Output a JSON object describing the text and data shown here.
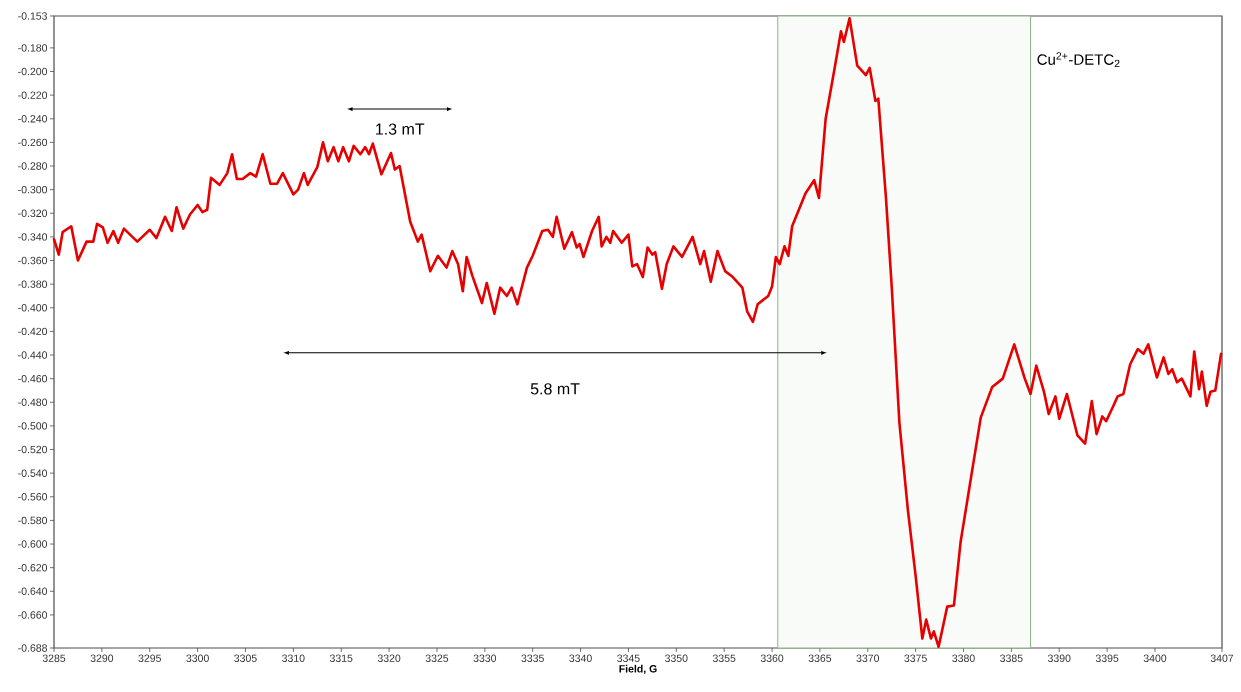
{
  "chart_data": {
    "type": "line",
    "xlabel": "Field, G",
    "color": "#e60000",
    "line_style": "solid",
    "marker": "none",
    "x": [
      3285.0,
      3285.5,
      3285.9,
      3286.8,
      3287.5,
      3288.4,
      3289.1,
      3289.5,
      3290.1,
      3290.6,
      3291.2,
      3291.7,
      3292.3,
      3293.7,
      3295.0,
      3295.7,
      3296.6,
      3297.3,
      3297.8,
      3298.5,
      3299.2,
      3300.0,
      3300.5,
      3301.0,
      3301.4,
      3302.3,
      3303.1,
      3303.6,
      3304.1,
      3304.7,
      3305.5,
      3306.1,
      3306.8,
      3307.6,
      3308.3,
      3308.9,
      3310.0,
      3310.5,
      3311.1,
      3311.5,
      3312.5,
      3313.1,
      3313.6,
      3314.2,
      3314.7,
      3315.2,
      3315.8,
      3316.3,
      3317.0,
      3317.5,
      3317.9,
      3318.3,
      3319.2,
      3320.2,
      3320.6,
      3321.1,
      3322.2,
      3323.0,
      3323.4,
      3324.3,
      3325.1,
      3326.0,
      3326.6,
      3327.2,
      3327.7,
      3328.1,
      3328.7,
      3329.7,
      3330.2,
      3331.0,
      3331.6,
      3332.3,
      3332.8,
      3333.4,
      3334.4,
      3335.0,
      3336.0,
      3336.6,
      3337.1,
      3337.5,
      3338.3,
      3339.1,
      3339.6,
      3339.9,
      3340.3,
      3341.2,
      3341.9,
      3342.2,
      3342.7,
      3343.1,
      3343.4,
      3344.3,
      3345.0,
      3345.4,
      3345.9,
      3346.5,
      3347.0,
      3347.5,
      3347.8,
      3348.5,
      3349.0,
      3349.7,
      3350.6,
      3351.7,
      3352.5,
      3352.9,
      3353.6,
      3354.3,
      3355.1,
      3355.9,
      3356.9,
      3357.4,
      3358.0,
      3358.5,
      3359.6,
      3360.0,
      3360.4,
      3360.8,
      3361.3,
      3361.7,
      3362.1,
      3363.5,
      3364.4,
      3364.9,
      3365.6,
      3366.5,
      3367.2,
      3367.5,
      3368.1,
      3368.9,
      3369.8,
      3370.2,
      3370.8,
      3371.1,
      3371.9,
      3372.5,
      3373.3,
      3374.2,
      3375.0,
      3375.7,
      3376.1,
      3376.6,
      3376.9,
      3377.4,
      3378.3,
      3379.0,
      3379.7,
      3380.6,
      3381.8,
      3383.0,
      3384.1,
      3385.3,
      3386.4,
      3387.0,
      3387.6,
      3388.4,
      3388.9,
      3389.6,
      3390.0,
      3390.8,
      3391.9,
      3392.7,
      3393.4,
      3393.9,
      3394.5,
      3394.9,
      3395.6,
      3396.1,
      3396.7,
      3397.4,
      3398.2,
      3398.8,
      3399.3,
      3400.2,
      3400.9,
      3401.4,
      3401.8,
      3402.3,
      3402.8,
      3403.7,
      3404.1,
      3404.6,
      3404.9,
      3405.4,
      3405.8,
      3406.3,
      3406.9
    ],
    "values": [
      -0.342,
      -0.355,
      -0.336,
      -0.331,
      -0.36,
      -0.344,
      -0.344,
      -0.329,
      -0.332,
      -0.345,
      -0.335,
      -0.345,
      -0.333,
      -0.344,
      -0.334,
      -0.341,
      -0.323,
      -0.335,
      -0.315,
      -0.333,
      -0.321,
      -0.313,
      -0.319,
      -0.317,
      -0.29,
      -0.296,
      -0.286,
      -0.27,
      -0.291,
      -0.291,
      -0.286,
      -0.289,
      -0.27,
      -0.295,
      -0.295,
      -0.286,
      -0.304,
      -0.3,
      -0.286,
      -0.296,
      -0.281,
      -0.26,
      -0.276,
      -0.264,
      -0.276,
      -0.264,
      -0.276,
      -0.263,
      -0.27,
      -0.264,
      -0.27,
      -0.261,
      -0.287,
      -0.269,
      -0.283,
      -0.28,
      -0.327,
      -0.344,
      -0.338,
      -0.369,
      -0.356,
      -0.366,
      -0.352,
      -0.363,
      -0.386,
      -0.357,
      -0.373,
      -0.396,
      -0.379,
      -0.405,
      -0.383,
      -0.39,
      -0.383,
      -0.397,
      -0.366,
      -0.356,
      -0.335,
      -0.334,
      -0.34,
      -0.323,
      -0.35,
      -0.336,
      -0.349,
      -0.346,
      -0.357,
      -0.335,
      -0.323,
      -0.348,
      -0.34,
      -0.345,
      -0.335,
      -0.345,
      -0.338,
      -0.365,
      -0.363,
      -0.374,
      -0.349,
      -0.355,
      -0.353,
      -0.384,
      -0.363,
      -0.348,
      -0.357,
      -0.34,
      -0.363,
      -0.352,
      -0.378,
      -0.352,
      -0.369,
      -0.374,
      -0.383,
      -0.403,
      -0.412,
      -0.397,
      -0.39,
      -0.382,
      -0.357,
      -0.363,
      -0.348,
      -0.356,
      -0.331,
      -0.303,
      -0.292,
      -0.307,
      -0.24,
      -0.199,
      -0.166,
      -0.175,
      -0.155,
      -0.195,
      -0.203,
      -0.197,
      -0.225,
      -0.223,
      -0.307,
      -0.382,
      -0.497,
      -0.572,
      -0.627,
      -0.68,
      -0.664,
      -0.68,
      -0.674,
      -0.687,
      -0.653,
      -0.652,
      -0.598,
      -0.553,
      -0.493,
      -0.467,
      -0.46,
      -0.431,
      -0.46,
      -0.473,
      -0.449,
      -0.471,
      -0.49,
      -0.475,
      -0.494,
      -0.473,
      -0.508,
      -0.515,
      -0.479,
      -0.507,
      -0.492,
      -0.496,
      -0.484,
      -0.475,
      -0.473,
      -0.448,
      -0.435,
      -0.439,
      -0.431,
      -0.459,
      -0.442,
      -0.456,
      -0.452,
      -0.463,
      -0.46,
      -0.475,
      -0.437,
      -0.469,
      -0.454,
      -0.483,
      -0.471,
      -0.47,
      -0.439
    ],
    "xlim": [
      3285,
      3407
    ],
    "ylim": [
      -0.688,
      -0.153
    ],
    "xticks": [
      3285,
      3290,
      3295,
      3300,
      3305,
      3310,
      3315,
      3320,
      3325,
      3330,
      3335,
      3340,
      3345,
      3350,
      3355,
      3360,
      3365,
      3370,
      3375,
      3380,
      3385,
      3390,
      3395,
      3400,
      3407
    ],
    "yticks": [
      {
        "value": -0.153,
        "label": "-0.153"
      },
      {
        "value": -0.18,
        "label": "-0.180"
      },
      {
        "value": -0.2,
        "label": "-0.200"
      },
      {
        "value": -0.22,
        "label": "-0.220"
      },
      {
        "value": -0.24,
        "label": "-0.240"
      },
      {
        "value": -0.26,
        "label": "-0.260"
      },
      {
        "value": -0.28,
        "label": "-0.280"
      },
      {
        "value": -0.3,
        "label": "-0.300"
      },
      {
        "value": -0.32,
        "label": "-0.320"
      },
      {
        "value": -0.34,
        "label": "-0.340"
      },
      {
        "value": -0.36,
        "label": "-0.360"
      },
      {
        "value": -0.38,
        "label": "-0.380"
      },
      {
        "value": -0.4,
        "label": "-0.400"
      },
      {
        "value": -0.42,
        "label": "-0.420"
      },
      {
        "value": -0.44,
        "label": "-0.440"
      },
      {
        "value": -0.46,
        "label": "-0.460"
      },
      {
        "value": -0.48,
        "label": "-0.480"
      },
      {
        "value": -0.5,
        "label": "-0.500"
      },
      {
        "value": -0.52,
        "label": "-0.520"
      },
      {
        "value": -0.54,
        "label": "-0.540"
      },
      {
        "value": -0.56,
        "label": "-0.560"
      },
      {
        "value": -0.58,
        "label": "-0.580"
      },
      {
        "value": -0.6,
        "label": "-0.600"
      },
      {
        "value": -0.62,
        "label": "-0.620"
      },
      {
        "value": -0.64,
        "label": "-0.640"
      },
      {
        "value": -0.66,
        "label": "-0.660"
      },
      {
        "value": -0.688,
        "label": "-0.688"
      }
    ],
    "bands": [
      {
        "axis": "x",
        "from": 3360.6,
        "to": 3387.0,
        "color": "#8fb58a",
        "label": "Cu$^{2+}$-DETC$_{2}$"
      }
    ],
    "annotations": [
      "1.3 mT",
      "5.8 mT"
    ]
  }
}
